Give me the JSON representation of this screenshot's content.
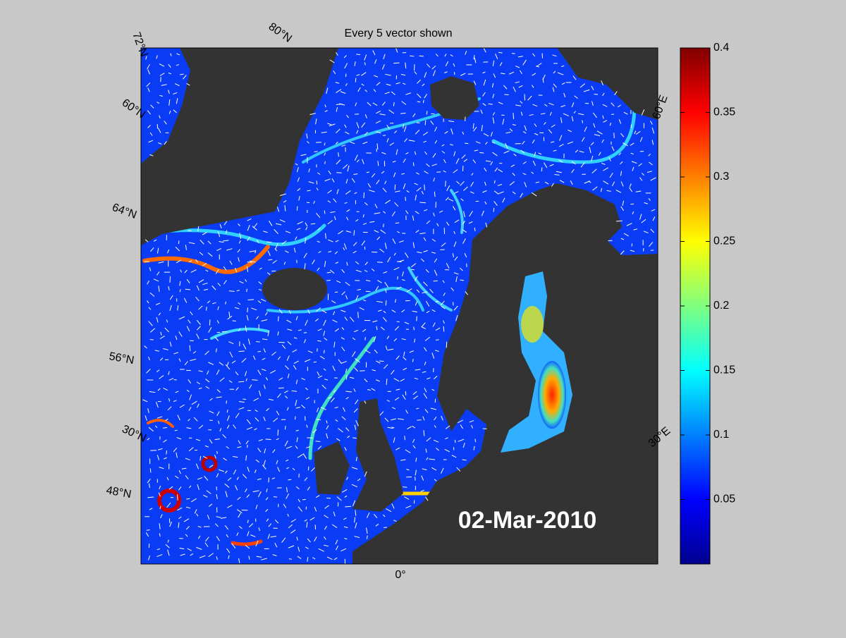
{
  "map": {
    "title": "Every 5 vector shown",
    "date": "02-Mar-2010",
    "graticule_labels": [
      "72°N",
      "80°N",
      "60°N",
      "64°N",
      "56°N",
      "30°N",
      "48°N",
      "0°",
      "60°E",
      "30°E"
    ],
    "colorbar": {
      "clim": [
        0,
        0.4
      ],
      "ticks": [
        0.05,
        0.1,
        0.15,
        0.2,
        0.25,
        0.3,
        0.35,
        0.4
      ]
    }
  }
}
